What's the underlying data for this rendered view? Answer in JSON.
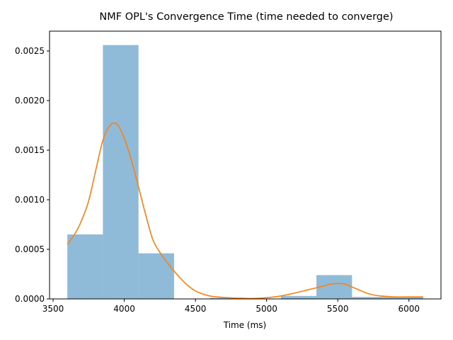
{
  "chart_data": {
    "type": "bar",
    "title": "NMF OPL's Convergence Time (time needed to converge)",
    "xlabel": "Time (ms)",
    "ylabel": "",
    "xlim": [
      3475,
      6225
    ],
    "ylim": [
      0,
      0.0027
    ],
    "xticks": [
      3500,
      4000,
      4500,
      5000,
      5500,
      6000
    ],
    "xtick_labels": [
      "3500",
      "4000",
      "4500",
      "5000",
      "5500",
      "6000"
    ],
    "yticks": [
      0,
      0.0005,
      0.001,
      0.0015,
      0.002,
      0.0025
    ],
    "ytick_labels": [
      "0.0000",
      "0.0005",
      "0.0010",
      "0.0015",
      "0.0020",
      "0.0025"
    ],
    "grid": false,
    "legend": false,
    "colors": {
      "histogram": "#1f77b4",
      "kde": "#ff7f0e"
    },
    "histogram": {
      "name": "",
      "bin_edges": [
        3600,
        3850,
        4100,
        4350,
        4600,
        4850,
        5100,
        5350,
        5600,
        5850,
        6100
      ],
      "values": [
        0.00065,
        0.00256,
        0.00046,
        0.0,
        1e-05,
        0.0,
        3e-05,
        0.00024,
        2e-05,
        2e-05
      ]
    },
    "kde": {
      "name": "",
      "x": [
        3600,
        3650,
        3700,
        3750,
        3800,
        3850,
        3900,
        3950,
        4000,
        4050,
        4100,
        4150,
        4200,
        4250,
        4300,
        4350,
        4400,
        4450,
        4500,
        4550,
        4600,
        4650,
        4700,
        4800,
        4900,
        5000,
        5100,
        5200,
        5300,
        5400,
        5450,
        5500,
        5550,
        5600,
        5650,
        5700,
        5750,
        5800,
        5850,
        5900,
        6000,
        6100
      ],
      "y": [
        0.00055,
        0.00065,
        0.00079,
        0.00099,
        0.0013,
        0.0016,
        0.00175,
        0.00176,
        0.00162,
        0.0014,
        0.00113,
        0.00085,
        0.0006,
        0.00047,
        0.00037,
        0.00028,
        0.0002,
        0.00013,
        8e-05,
        5e-05,
        3e-05,
        2e-05,
        1.5e-05,
        8e-06,
        5e-06,
        1.2e-05,
        3e-05,
        6e-05,
        9.5e-05,
        0.00013,
        0.00015,
        0.000155,
        0.00015,
        0.00012,
        9e-05,
        6e-05,
        4e-05,
        3e-05,
        2.5e-05,
        2e-05,
        2e-05,
        2e-05
      ]
    }
  }
}
